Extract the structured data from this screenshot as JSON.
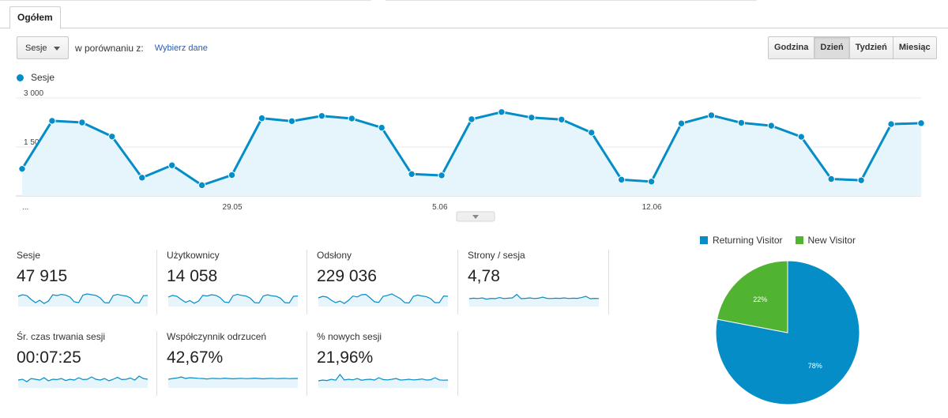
{
  "tabs": {
    "active": "Ogółem"
  },
  "controls": {
    "metric_dropdown": "Sesje",
    "compare_label": "w porównaniu z:",
    "compare_link": "Wybierz dane"
  },
  "period": {
    "buttons": [
      "Godzina",
      "Dzień",
      "Tydzień",
      "Miesiąc"
    ],
    "active": "Dzień"
  },
  "chart_data": [
    {
      "type": "area",
      "series": [
        {
          "name": "Sesje",
          "color": "#058dc7",
          "values": [
            830,
            2300,
            2250,
            1820,
            560,
            940,
            330,
            640,
            2380,
            2290,
            2450,
            2370,
            2090,
            670,
            630,
            2350,
            2570,
            2400,
            2340,
            1940,
            500,
            440,
            2220,
            2470,
            2240,
            2150,
            1810,
            520,
            480,
            2200,
            2230
          ]
        }
      ],
      "x_tick_labels": [
        "...",
        "29.05",
        "5.06",
        "12.06"
      ],
      "y_tick_labels": [
        "3 000",
        "1 500"
      ],
      "ylim": [
        0,
        3000
      ],
      "grid": true
    },
    {
      "type": "pie",
      "legend": "top",
      "slices": [
        {
          "name": "Returning Visitor",
          "value": 78,
          "label": "78%",
          "color": "#058dc7"
        },
        {
          "name": "New Visitor",
          "value": 22,
          "label": "22%",
          "color": "#50b432"
        }
      ]
    }
  ],
  "metrics": [
    {
      "label": "Sesje",
      "value": "47 915",
      "spark": [
        0.6,
        0.7,
        0.65,
        0.4,
        0.2,
        0.35,
        0.15,
        0.3,
        0.7,
        0.65,
        0.72,
        0.68,
        0.55,
        0.25,
        0.2,
        0.68,
        0.75,
        0.7,
        0.66,
        0.5,
        0.2,
        0.18,
        0.65,
        0.72,
        0.66,
        0.62,
        0.5,
        0.2,
        0.18,
        0.64,
        0.65
      ]
    },
    {
      "label": "Użytkownicy",
      "value": "14 058",
      "spark": [
        0.55,
        0.66,
        0.6,
        0.4,
        0.22,
        0.33,
        0.16,
        0.3,
        0.66,
        0.62,
        0.7,
        0.66,
        0.52,
        0.24,
        0.2,
        0.64,
        0.72,
        0.66,
        0.62,
        0.48,
        0.2,
        0.18,
        0.62,
        0.7,
        0.63,
        0.6,
        0.48,
        0.2,
        0.18,
        0.6,
        0.62
      ]
    },
    {
      "label": "Odsłony",
      "value": "229 036",
      "spark": [
        0.5,
        0.6,
        0.55,
        0.35,
        0.2,
        0.3,
        0.15,
        0.35,
        0.62,
        0.56,
        0.7,
        0.72,
        0.5,
        0.25,
        0.22,
        0.6,
        0.66,
        0.75,
        0.6,
        0.45,
        0.2,
        0.18,
        0.6,
        0.68,
        0.62,
        0.58,
        0.45,
        0.2,
        0.2,
        0.62,
        0.6
      ]
    },
    {
      "label": "Strony / sesja",
      "value": "4,78",
      "spark": [
        0.45,
        0.48,
        0.46,
        0.5,
        0.42,
        0.47,
        0.45,
        0.52,
        0.46,
        0.48,
        0.5,
        0.72,
        0.45,
        0.47,
        0.5,
        0.46,
        0.48,
        0.55,
        0.47,
        0.46,
        0.48,
        0.47,
        0.5,
        0.46,
        0.48,
        0.47,
        0.52,
        0.6,
        0.45,
        0.47,
        0.46
      ]
    },
    {
      "label": "Śr. czas trwania sesji",
      "value": "00:07:25",
      "spark": [
        0.45,
        0.5,
        0.35,
        0.55,
        0.5,
        0.45,
        0.6,
        0.4,
        0.5,
        0.48,
        0.55,
        0.42,
        0.5,
        0.45,
        0.6,
        0.48,
        0.5,
        0.65,
        0.5,
        0.45,
        0.55,
        0.4,
        0.5,
        0.62,
        0.48,
        0.5,
        0.58,
        0.45,
        0.7,
        0.55,
        0.5
      ]
    },
    {
      "label": "Współczynnik odrzuceń",
      "value": "42,67%",
      "spark": [
        0.5,
        0.55,
        0.58,
        0.65,
        0.55,
        0.6,
        0.58,
        0.56,
        0.55,
        0.52,
        0.56,
        0.55,
        0.54,
        0.57,
        0.55,
        0.53,
        0.55,
        0.56,
        0.54,
        0.55,
        0.57,
        0.55,
        0.53,
        0.55,
        0.56,
        0.54,
        0.55,
        0.56,
        0.54,
        0.55,
        0.55
      ]
    },
    {
      "label": "% nowych sesji",
      "value": "21,96%",
      "spark": [
        0.4,
        0.45,
        0.42,
        0.5,
        0.44,
        0.8,
        0.45,
        0.5,
        0.46,
        0.55,
        0.44,
        0.48,
        0.5,
        0.45,
        0.6,
        0.48,
        0.46,
        0.5,
        0.55,
        0.45,
        0.47,
        0.5,
        0.46,
        0.48,
        0.52,
        0.45,
        0.47,
        0.6,
        0.46,
        0.44,
        0.45
      ]
    }
  ]
}
